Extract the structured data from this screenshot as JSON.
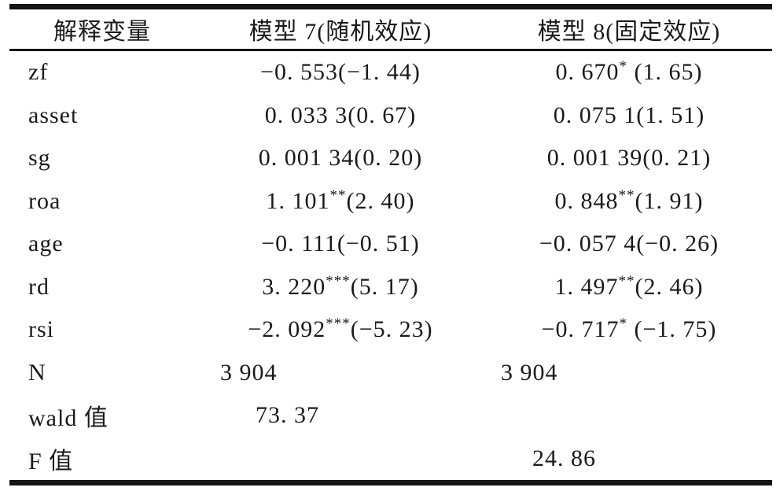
{
  "colors": {
    "ink": "#1a1a1a",
    "rule": "#141414",
    "background": "#ffffff"
  },
  "table": {
    "header": {
      "variable": "解释变量",
      "model7": "模型 7(随机效应)",
      "model8": "模型 8(固定效应)"
    },
    "rows": [
      {
        "label": "zf",
        "m7": {
          "pre": "−0. 553(−1. 44)",
          "sup": "",
          "post": ""
        },
        "m8": {
          "pre": "0. 670",
          "sup": "*",
          "post": " (1. 65)"
        }
      },
      {
        "label": "asset",
        "m7": {
          "pre": "0. 033 3(0. 67)",
          "sup": "",
          "post": ""
        },
        "m8": {
          "pre": "0. 075 1(1. 51)",
          "sup": "",
          "post": ""
        }
      },
      {
        "label": "sg",
        "m7": {
          "pre": "0. 001 34(0. 20)",
          "sup": "",
          "post": ""
        },
        "m8": {
          "pre": "0. 001 39(0. 21)",
          "sup": "",
          "post": ""
        }
      },
      {
        "label": "roa",
        "m7": {
          "pre": "1. 101",
          "sup": "**",
          "post": "(2. 40)"
        },
        "m8": {
          "pre": "0. 848",
          "sup": "**",
          "post": "(1. 91)"
        }
      },
      {
        "label": "age",
        "m7": {
          "pre": "−0. 111(−0. 51)",
          "sup": "",
          "post": ""
        },
        "m8": {
          "pre": "−0. 057 4(−0. 26)",
          "sup": "",
          "post": ""
        }
      },
      {
        "label": "rd",
        "m7": {
          "pre": "3. 220",
          "sup": "***",
          "post": "(5. 17)"
        },
        "m8": {
          "pre": "1. 497",
          "sup": "**",
          "post": "(2. 46)"
        }
      },
      {
        "label": "rsi",
        "m7": {
          "pre": "−2. 092",
          "sup": "***",
          "post": "(−5. 23)"
        },
        "m8": {
          "pre": "−0. 717",
          "sup": "*",
          "post": " (−1. 75)"
        }
      },
      {
        "label": "N",
        "m7": {
          "pre": "3 904",
          "sup": "",
          "post": ""
        },
        "m8": {
          "pre": "3 904",
          "sup": "",
          "post": ""
        }
      },
      {
        "label": "wald 值",
        "m7": {
          "pre": "73. 37",
          "sup": "",
          "post": ""
        },
        "m8": {
          "pre": "",
          "sup": "",
          "post": ""
        }
      },
      {
        "label": "F 值",
        "m7": {
          "pre": "",
          "sup": "",
          "post": ""
        },
        "m8": {
          "pre": "24. 86",
          "sup": "",
          "post": ""
        }
      }
    ]
  }
}
